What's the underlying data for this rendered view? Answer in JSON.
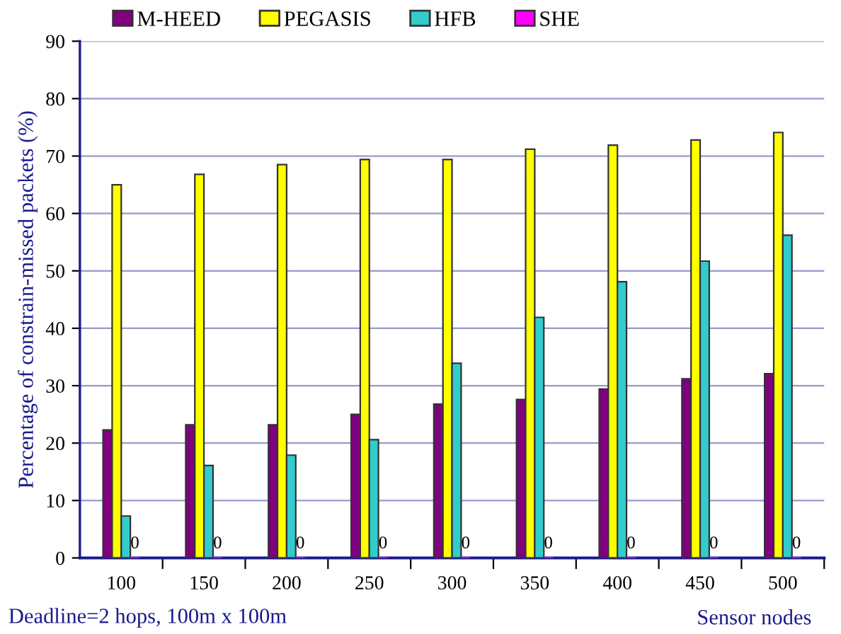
{
  "chart_data": {
    "type": "bar",
    "categories": [
      "100",
      "150",
      "200",
      "250",
      "300",
      "350",
      "400",
      "450",
      "500"
    ],
    "series": [
      {
        "name": "M-HEED",
        "color": "#800080",
        "values": [
          22.3,
          23.2,
          23.2,
          25,
          26.8,
          27.6,
          29.4,
          31.2,
          32.1
        ]
      },
      {
        "name": "PEGASIS",
        "color": "#ffff00",
        "values": [
          65,
          66.8,
          68.5,
          69.4,
          69.4,
          71.2,
          71.9,
          72.8,
          74.1
        ]
      },
      {
        "name": "HFB",
        "color": "#33cccc",
        "values": [
          7.3,
          16.1,
          17.9,
          20.6,
          33.9,
          41.9,
          48.1,
          51.7,
          56.2
        ]
      },
      {
        "name": "SHE",
        "color": "#ff00ff",
        "values": [
          0,
          0,
          0,
          0,
          0,
          0,
          0,
          0,
          0
        ],
        "value_labels": [
          "0",
          "0",
          "0",
          "0",
          "0",
          "0",
          "0",
          "0",
          "0"
        ]
      }
    ],
    "ylim": [
      0,
      90
    ],
    "yticks": [
      0,
      10,
      20,
      30,
      40,
      50,
      60,
      70,
      80,
      90
    ],
    "ylabel": "Percentage of constrain-missed packets (%)",
    "xlabel": "Sensor nodes",
    "annotations": [
      "Deadline=2 hops, 100m x 100m"
    ],
    "grid": "y",
    "legend": "top"
  }
}
